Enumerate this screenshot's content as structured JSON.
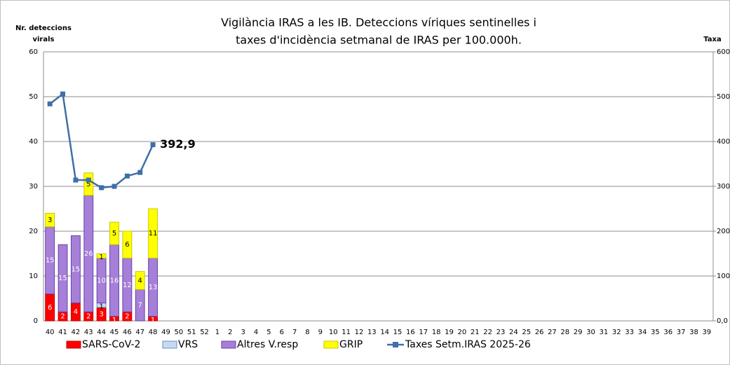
{
  "chart_data": {
    "type": "bar",
    "stacked": true,
    "title": [
      "Vigilància IRAS  a les IB. Deteccions víriques sentinelles i",
      "taxes d'incidència setmanal de IRAS per 100.000h."
    ],
    "y_label": [
      "Nr. deteccions",
      "virals"
    ],
    "y2_label": "Taxa",
    "categories": [
      "40",
      "41",
      "42",
      "43",
      "44",
      "45",
      "46",
      "47",
      "48",
      "49",
      "50",
      "51",
      "52",
      "1",
      "2",
      "3",
      "4",
      "5",
      "6",
      "7",
      "8",
      "9",
      "10",
      "11",
      "12",
      "13",
      "14",
      "15",
      "16",
      "17",
      "18",
      "19",
      "20",
      "21",
      "22",
      "23",
      "24",
      "25",
      "26",
      "27",
      "28",
      "29",
      "30",
      "31",
      "32",
      "33",
      "34",
      "35",
      "36",
      "37",
      "38",
      "39"
    ],
    "ylim": [
      0,
      60
    ],
    "yticks": [
      0,
      10,
      20,
      30,
      40,
      50,
      60
    ],
    "y2lim": [
      0,
      600
    ],
    "y2ticks": [
      {
        "value": 0,
        "label": "0,0"
      },
      {
        "value": 100,
        "label": "100,0"
      },
      {
        "value": 200,
        "label": "200,0"
      },
      {
        "value": 300,
        "label": "300,0"
      },
      {
        "value": 400,
        "label": "400,0"
      },
      {
        "value": 500,
        "label": "500,0"
      },
      {
        "value": 600,
        "label": "600,0"
      }
    ],
    "grid": true,
    "legend": "bottom",
    "series": [
      {
        "name": "SARS-CoV-2",
        "color": "#ff0000",
        "values": [
          6,
          2,
          4,
          2,
          3,
          1,
          2,
          0,
          1,
          null,
          null,
          null,
          null,
          null,
          null,
          null,
          null,
          null,
          null,
          null,
          null,
          null,
          null,
          null,
          null,
          null,
          null,
          null,
          null,
          null,
          null,
          null,
          null,
          null,
          null,
          null,
          null,
          null,
          null,
          null,
          null,
          null,
          null,
          null,
          null,
          null,
          null,
          null,
          null,
          null,
          null,
          null
        ]
      },
      {
        "name": "VRS",
        "color": "#c6d9f1",
        "values": [
          0,
          0,
          0,
          0,
          1,
          0,
          0,
          0,
          0,
          null,
          null,
          null,
          null,
          null,
          null,
          null,
          null,
          null,
          null,
          null,
          null,
          null,
          null,
          null,
          null,
          null,
          null,
          null,
          null,
          null,
          null,
          null,
          null,
          null,
          null,
          null,
          null,
          null,
          null,
          null,
          null,
          null,
          null,
          null,
          null,
          null,
          null,
          null,
          null,
          null,
          null,
          null
        ]
      },
      {
        "name": "Altres V.resp",
        "color": "#a67fd8",
        "values": [
          15,
          15,
          15,
          26,
          10,
          16,
          12,
          7,
          13,
          null,
          null,
          null,
          null,
          null,
          null,
          null,
          null,
          null,
          null,
          null,
          null,
          null,
          null,
          null,
          null,
          null,
          null,
          null,
          null,
          null,
          null,
          null,
          null,
          null,
          null,
          null,
          null,
          null,
          null,
          null,
          null,
          null,
          null,
          null,
          null,
          null,
          null,
          null,
          null,
          null,
          null,
          null
        ]
      },
      {
        "name": "GRIP",
        "color": "#ffff00",
        "values": [
          3,
          0,
          0,
          5,
          1,
          5,
          6,
          4,
          11,
          null,
          null,
          null,
          null,
          null,
          null,
          null,
          null,
          null,
          null,
          null,
          null,
          null,
          null,
          null,
          null,
          null,
          null,
          null,
          null,
          null,
          null,
          null,
          null,
          null,
          null,
          null,
          null,
          null,
          null,
          null,
          null,
          null,
          null,
          null,
          null,
          null,
          null,
          null,
          null,
          null,
          null,
          null
        ]
      },
      {
        "name": "Taxes Setm.IRAS 2025-26",
        "color": "#3f6fa6",
        "type": "line",
        "axis": "y2",
        "values": [
          484,
          506,
          314,
          314,
          297,
          300,
          323,
          331,
          392.9,
          null,
          null,
          null,
          null,
          null,
          null,
          null,
          null,
          null,
          null,
          null,
          null,
          null,
          null,
          null,
          null,
          null,
          null,
          null,
          null,
          null,
          null,
          null,
          null,
          null,
          null,
          null,
          null,
          null,
          null,
          null,
          null,
          null,
          null,
          null,
          null,
          null,
          null,
          null,
          null,
          null,
          null,
          null
        ],
        "value_labels": [
          null,
          null,
          null,
          null,
          null,
          null,
          null,
          null,
          "392,9",
          null,
          null,
          null,
          null,
          null,
          null,
          null,
          null,
          null,
          null,
          null,
          null,
          null,
          null,
          null,
          null,
          null,
          null,
          null,
          null,
          null,
          null,
          null,
          null,
          null,
          null,
          null,
          null,
          null,
          null,
          null,
          null,
          null,
          null,
          null,
          null,
          null,
          null,
          null,
          null,
          null,
          null,
          null
        ]
      }
    ]
  }
}
